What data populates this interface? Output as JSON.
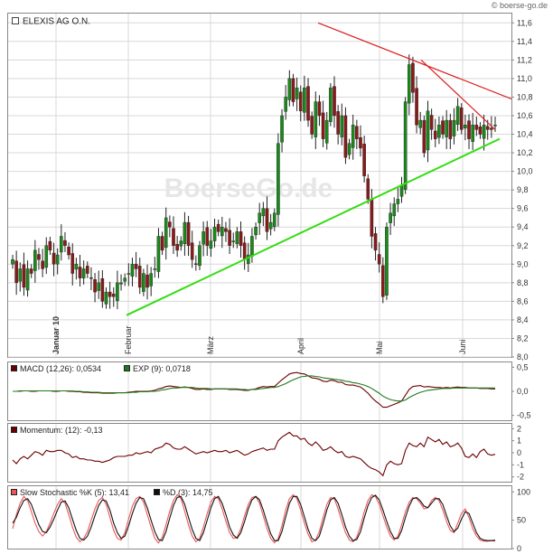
{
  "title": "ELEXIS AG O.N.",
  "credit": "© boerse-go.de",
  "watermark": "BoerseGo.de",
  "colors": {
    "candle_up": "#1a8a1a",
    "candle_down": "#8a1a1a",
    "support_line": "#33dd11",
    "resistance_line": "#dd2222",
    "macd": "#6b0000",
    "signal": "#1e7a1e",
    "momentum": "#6b0000",
    "stoch_k": "#ee5555",
    "stoch_d": "#111111",
    "grid": "#d8d8d8",
    "frame": "#888888"
  },
  "chart_data": [
    {
      "type": "candlestick",
      "title": "ELEXIS AG O.N.",
      "ylim": [
        8.0,
        11.7
      ],
      "y_ticks": [
        "8,0",
        "8,2",
        "8,4",
        "8,6",
        "8,8",
        "9,0",
        "9,2",
        "9,4",
        "9,6",
        "9,8",
        "10,0",
        "10,2",
        "10,4",
        "10,6",
        "10,8",
        "11,0",
        "11,2",
        "11,4",
        "11,6"
      ],
      "month_labels": [
        "Januar 10",
        "Februar",
        "März",
        "April",
        "Mai",
        "Juni"
      ],
      "grid": true,
      "closes": [
        9.05,
        8.8,
        8.95,
        8.75,
        8.95,
        8.9,
        9.15,
        9.05,
        8.95,
        9.2,
        9.15,
        9.0,
        9.1,
        9.3,
        9.2,
        9.1,
        8.9,
        9.0,
        8.85,
        8.95,
        8.9,
        8.85,
        8.7,
        8.8,
        8.6,
        8.7,
        8.65,
        8.65,
        8.8,
        8.8,
        8.85,
        8.9,
        9.0,
        8.95,
        8.75,
        8.9,
        8.75,
        8.9,
        8.95,
        9.3,
        9.15,
        9.5,
        9.4,
        9.2,
        9.15,
        9.25,
        9.45,
        9.2,
        9.05,
        9.0,
        9.2,
        9.35,
        9.2,
        9.25,
        9.4,
        9.35,
        9.4,
        9.35,
        9.2,
        9.25,
        9.35,
        9.2,
        9.05,
        9.1,
        9.3,
        9.4,
        9.55,
        9.6,
        9.35,
        9.45,
        9.55,
        10.3,
        10.6,
        10.8,
        11.0,
        10.75,
        10.9,
        10.65,
        10.9,
        10.55,
        10.4,
        10.75,
        10.6,
        10.35,
        10.55,
        10.9,
        10.6,
        10.4,
        10.6,
        10.15,
        10.3,
        10.5,
        10.35,
        10.25,
        9.95,
        9.7,
        9.3,
        9.15,
        9.0,
        8.65,
        9.4,
        9.55,
        9.65,
        9.7,
        9.85,
        10.75,
        11.15,
        10.85,
        10.5,
        10.55,
        10.2,
        10.65,
        10.45,
        10.35,
        10.5,
        10.4,
        10.55,
        10.35,
        10.55,
        10.7,
        10.45,
        10.5,
        10.35,
        10.5,
        10.45,
        10.4,
        10.5,
        10.45,
        10.45,
        10.5
      ],
      "support_line": {
        "from": 8.45,
        "to": 10.35
      },
      "resistance_lines": [
        {
          "from": 11.6,
          "to": 10.78
        },
        {
          "from": 11.2,
          "to": 10.45
        }
      ]
    },
    {
      "type": "line",
      "label": "MACD (12,26): 0,0534",
      "signal_label": "EXP (9): 0,0718",
      "ylim": [
        -0.6,
        0.6
      ],
      "y_ticks": [
        "0,5",
        "0,0",
        "-0,5"
      ],
      "series": [
        {
          "name": "MACD (12,26)",
          "values": [
            0.0,
            0.0,
            0.01,
            0.01,
            0.01,
            0.0,
            0.0,
            0.01,
            0.01,
            0.01,
            0.01,
            0.0,
            0.0,
            0.01,
            0.01,
            0.0,
            0.0,
            -0.01,
            -0.01,
            -0.02,
            -0.02,
            -0.03,
            -0.03,
            -0.03,
            -0.04,
            -0.04,
            -0.04,
            -0.04,
            -0.03,
            -0.03,
            -0.03,
            -0.02,
            -0.01,
            0.0,
            0.0,
            0.0,
            0.0,
            0.01,
            0.02,
            0.05,
            0.07,
            0.1,
            0.11,
            0.1,
            0.09,
            0.08,
            0.09,
            0.08,
            0.06,
            0.04,
            0.04,
            0.05,
            0.04,
            0.04,
            0.05,
            0.05,
            0.05,
            0.05,
            0.04,
            0.04,
            0.04,
            0.03,
            0.02,
            0.02,
            0.04,
            0.05,
            0.08,
            0.1,
            0.09,
            0.1,
            0.1,
            0.17,
            0.24,
            0.3,
            0.36,
            0.38,
            0.39,
            0.37,
            0.36,
            0.32,
            0.28,
            0.27,
            0.25,
            0.21,
            0.2,
            0.23,
            0.22,
            0.19,
            0.19,
            0.14,
            0.13,
            0.13,
            0.11,
            0.09,
            0.03,
            -0.04,
            -0.13,
            -0.2,
            -0.26,
            -0.33,
            -0.33,
            -0.3,
            -0.27,
            -0.24,
            -0.2,
            -0.08,
            0.04,
            0.1,
            0.11,
            0.12,
            0.09,
            0.1,
            0.09,
            0.08,
            0.08,
            0.07,
            0.08,
            0.07,
            0.08,
            0.09,
            0.08,
            0.08,
            0.07,
            0.07,
            0.07,
            0.06,
            0.06,
            0.06,
            0.05,
            0.05
          ]
        },
        {
          "name": "EXP (9)",
          "values": [
            0.0,
            0.0,
            0.0,
            0.01,
            0.01,
            0.01,
            0.01,
            0.01,
            0.01,
            0.01,
            0.01,
            0.01,
            0.01,
            0.01,
            0.01,
            0.01,
            0.01,
            0.0,
            0.0,
            -0.01,
            -0.01,
            -0.02,
            -0.02,
            -0.02,
            -0.03,
            -0.03,
            -0.03,
            -0.03,
            -0.03,
            -0.03,
            -0.03,
            -0.03,
            -0.02,
            -0.02,
            -0.01,
            -0.01,
            -0.01,
            0.0,
            0.0,
            0.01,
            0.03,
            0.04,
            0.06,
            0.07,
            0.07,
            0.08,
            0.08,
            0.08,
            0.08,
            0.07,
            0.06,
            0.06,
            0.06,
            0.05,
            0.05,
            0.05,
            0.05,
            0.05,
            0.05,
            0.05,
            0.05,
            0.04,
            0.04,
            0.03,
            0.04,
            0.04,
            0.05,
            0.06,
            0.07,
            0.08,
            0.08,
            0.1,
            0.13,
            0.16,
            0.2,
            0.24,
            0.27,
            0.3,
            0.31,
            0.32,
            0.32,
            0.31,
            0.3,
            0.28,
            0.27,
            0.26,
            0.25,
            0.24,
            0.23,
            0.21,
            0.2,
            0.18,
            0.17,
            0.15,
            0.13,
            0.1,
            0.06,
            0.01,
            -0.04,
            -0.1,
            -0.14,
            -0.17,
            -0.19,
            -0.2,
            -0.2,
            -0.18,
            -0.13,
            -0.09,
            -0.05,
            -0.02,
            0.0,
            0.02,
            0.03,
            0.04,
            0.05,
            0.06,
            0.06,
            0.06,
            0.07,
            0.07,
            0.07,
            0.07,
            0.07,
            0.07,
            0.07,
            0.07,
            0.07,
            0.07,
            0.07,
            0.07
          ]
        }
      ]
    },
    {
      "type": "line",
      "label": "Momentum: (12): -0,13",
      "ylim": [
        -2.4,
        2.4
      ],
      "y_ticks": [
        "2",
        "1",
        "0",
        "-1",
        "-2"
      ],
      "series": [
        {
          "name": "Momentum (12)",
          "values": [
            -0.6,
            -0.9,
            -0.5,
            -0.3,
            -0.5,
            -0.2,
            0.1,
            0.0,
            -0.2,
            0.2,
            0.1,
            0.1,
            0.2,
            0.2,
            0.0,
            -0.1,
            -0.4,
            -0.3,
            -0.5,
            -0.5,
            -0.6,
            -0.6,
            -0.7,
            -0.7,
            -0.8,
            -0.7,
            -0.6,
            -0.4,
            -0.3,
            -0.3,
            -0.3,
            -0.2,
            -0.2,
            0.0,
            -0.1,
            0.0,
            0.1,
            0.0,
            0.3,
            0.4,
            0.5,
            0.8,
            0.7,
            0.4,
            0.3,
            0.3,
            0.5,
            0.3,
            0.1,
            -0.1,
            0.0,
            0.1,
            0.0,
            0.1,
            0.2,
            0.1,
            0.1,
            0.2,
            0.0,
            0.1,
            0.2,
            0.0,
            -0.2,
            -0.1,
            0.1,
            0.2,
            0.3,
            0.4,
            0.2,
            0.3,
            0.3,
            1.0,
            1.3,
            1.5,
            1.7,
            1.4,
            1.4,
            1.1,
            1.2,
            0.8,
            0.6,
            0.9,
            0.6,
            0.2,
            0.3,
            0.5,
            0.2,
            0.0,
            0.1,
            -0.3,
            -0.4,
            -0.3,
            -0.4,
            -0.5,
            -0.8,
            -1.1,
            -1.3,
            -1.4,
            -1.6,
            -1.9,
            -1.0,
            -0.7,
            -0.9,
            -1.0,
            -0.9,
            0.2,
            0.8,
            0.6,
            0.5,
            0.8,
            0.5,
            1.3,
            1.1,
            0.9,
            1.1,
            0.7,
            0.9,
            0.5,
            0.6,
            0.8,
            0.4,
            -0.3,
            -0.4,
            -0.1,
            -0.4,
            0.1,
            0.3,
            -0.1,
            -0.2,
            -0.13
          ]
        }
      ]
    },
    {
      "type": "line",
      "label": "Slow Stochastic %K (5): 13,41",
      "signal_label": "%D (3): 14,75",
      "ylim": [
        0,
        110
      ],
      "y_ticks": [
        "100",
        "50",
        "0"
      ],
      "series": [
        {
          "name": "Slow Stochastic %K (5)",
          "values": [
            35,
            60,
            80,
            92,
            85,
            65,
            45,
            30,
            22,
            30,
            45,
            62,
            78,
            88,
            80,
            60,
            38,
            20,
            12,
            18,
            30,
            50,
            70,
            85,
            90,
            78,
            55,
            32,
            18,
            15,
            28,
            52,
            75,
            88,
            92,
            82,
            60,
            38,
            18,
            10,
            20,
            42,
            66,
            85,
            95,
            88,
            66,
            42,
            22,
            12,
            18,
            38,
            62,
            82,
            92,
            88,
            70,
            48,
            28,
            18,
            20,
            35,
            58,
            78,
            90,
            92,
            80,
            58,
            35,
            18,
            10,
            18,
            40,
            68,
            88,
            95,
            88,
            68,
            45,
            25,
            12,
            15,
            30,
            55,
            78,
            90,
            88,
            70,
            48,
            28,
            15,
            12,
            20,
            40,
            65,
            85,
            95,
            92,
            78,
            58,
            38,
            22,
            15,
            22,
            42,
            65,
            82,
            90,
            88,
            80,
            70,
            72,
            85,
            90,
            85,
            68,
            48,
            32,
            28,
            45,
            62,
            70,
            55,
            35,
            22,
            15,
            13,
            13,
            14,
            13
          ]
        },
        {
          "name": "%D (3)",
          "values": [
            45,
            55,
            72,
            85,
            88,
            78,
            60,
            42,
            30,
            28,
            38,
            52,
            68,
            82,
            84,
            72,
            52,
            32,
            18,
            15,
            22,
            38,
            58,
            76,
            86,
            84,
            68,
            45,
            28,
            18,
            22,
            40,
            62,
            80,
            90,
            88,
            72,
            50,
            30,
            16,
            14,
            30,
            54,
            76,
            90,
            92,
            78,
            55,
            34,
            18,
            14,
            28,
            50,
            72,
            88,
            92,
            80,
            60,
            38,
            24,
            18,
            28,
            48,
            70,
            86,
            92,
            86,
            68,
            46,
            26,
            14,
            14,
            30,
            56,
            80,
            92,
            92,
            78,
            56,
            34,
            18,
            14,
            22,
            44,
            68,
            86,
            90,
            80,
            60,
            38,
            22,
            14,
            16,
            30,
            54,
            76,
            90,
            94,
            86,
            68,
            48,
            30,
            18,
            18,
            32,
            55,
            75,
            88,
            90,
            84,
            75,
            72,
            80,
            88,
            88,
            78,
            58,
            40,
            30,
            36,
            52,
            65,
            62,
            45,
            28,
            18,
            15,
            14,
            14,
            14.75
          ]
        }
      ]
    }
  ]
}
